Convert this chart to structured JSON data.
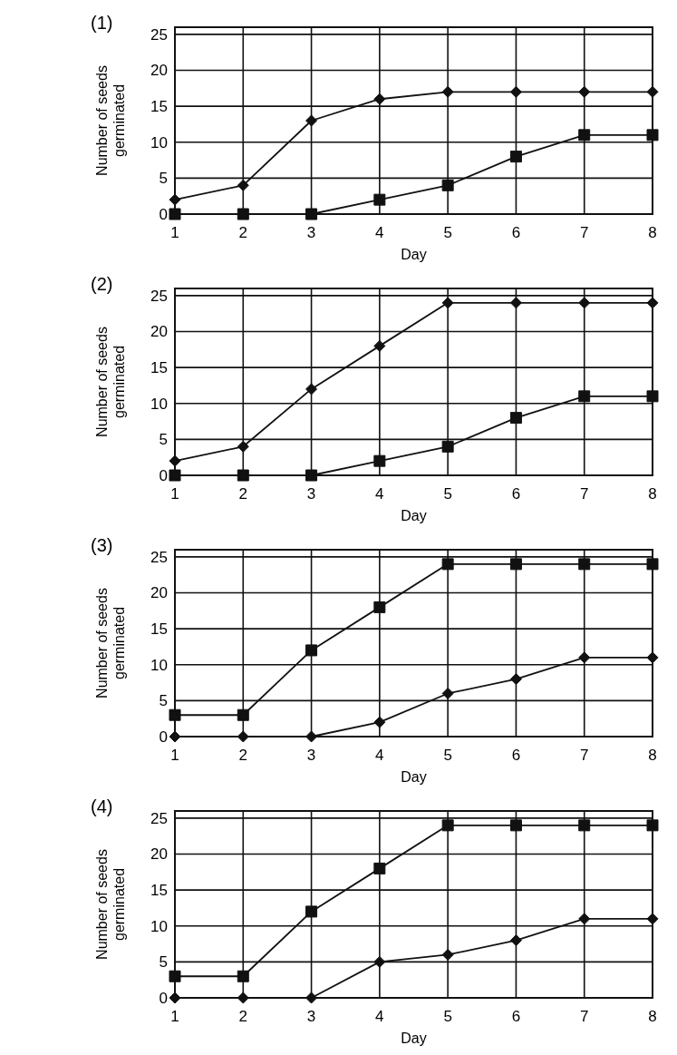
{
  "chart_data": [
    {
      "type": "line",
      "title": "(1)",
      "xlabel": "Day",
      "ylabel": "Number of seeds germinated",
      "x": [
        1,
        2,
        3,
        4,
        5,
        6,
        7,
        8
      ],
      "xlim": [
        1,
        8
      ],
      "xticks": [
        1,
        2,
        3,
        4,
        5,
        6,
        7,
        8
      ],
      "ylim": [
        0,
        26
      ],
      "yticks": [
        0,
        5,
        10,
        15,
        20,
        25
      ],
      "grid": true,
      "series": [
        {
          "color": "#111111",
          "marker": "diamond",
          "values": [
            2,
            4,
            13,
            16,
            17,
            17,
            17,
            17
          ]
        },
        {
          "color": "#111111",
          "marker": "square",
          "values": [
            0,
            0,
            0,
            2,
            4,
            8,
            11,
            11
          ]
        }
      ]
    },
    {
      "type": "line",
      "title": "(2)",
      "xlabel": "Day",
      "ylabel": "Number of seeds germinated",
      "x": [
        1,
        2,
        3,
        4,
        5,
        6,
        7,
        8
      ],
      "xlim": [
        1,
        8
      ],
      "xticks": [
        1,
        2,
        3,
        4,
        5,
        6,
        7,
        8
      ],
      "ylim": [
        0,
        26
      ],
      "yticks": [
        0,
        5,
        10,
        15,
        20,
        25
      ],
      "grid": true,
      "series": [
        {
          "color": "#111111",
          "marker": "diamond",
          "values": [
            2,
            4,
            12,
            18,
            24,
            24,
            24,
            24
          ]
        },
        {
          "color": "#111111",
          "marker": "square",
          "values": [
            0,
            0,
            0,
            2,
            4,
            8,
            11,
            11
          ]
        }
      ]
    },
    {
      "type": "line",
      "title": "(3)",
      "xlabel": "Day",
      "ylabel": "Number of seeds germinated",
      "x": [
        1,
        2,
        3,
        4,
        5,
        6,
        7,
        8
      ],
      "xlim": [
        1,
        8
      ],
      "xticks": [
        1,
        2,
        3,
        4,
        5,
        6,
        7,
        8
      ],
      "ylim": [
        0,
        26
      ],
      "yticks": [
        0,
        5,
        10,
        15,
        20,
        25
      ],
      "grid": true,
      "series": [
        {
          "color": "#111111",
          "marker": "square",
          "values": [
            3,
            3,
            12,
            18,
            24,
            24,
            24,
            24
          ]
        },
        {
          "color": "#111111",
          "marker": "diamond",
          "values": [
            0,
            0,
            0,
            2,
            6,
            8,
            11,
            11
          ]
        }
      ]
    },
    {
      "type": "line",
      "title": "(4)",
      "xlabel": "Day",
      "ylabel": "Number of seeds germinated",
      "x": [
        1,
        2,
        3,
        4,
        5,
        6,
        7,
        8
      ],
      "xlim": [
        1,
        8
      ],
      "xticks": [
        1,
        2,
        3,
        4,
        5,
        6,
        7,
        8
      ],
      "ylim": [
        0,
        26
      ],
      "yticks": [
        0,
        5,
        10,
        15,
        20,
        25
      ],
      "grid": true,
      "series": [
        {
          "color": "#111111",
          "marker": "square",
          "values": [
            3,
            3,
            12,
            18,
            24,
            24,
            24,
            24
          ]
        },
        {
          "color": "#111111",
          "marker": "diamond",
          "values": [
            0,
            0,
            0,
            5,
            6,
            8,
            11,
            11
          ]
        }
      ]
    }
  ]
}
